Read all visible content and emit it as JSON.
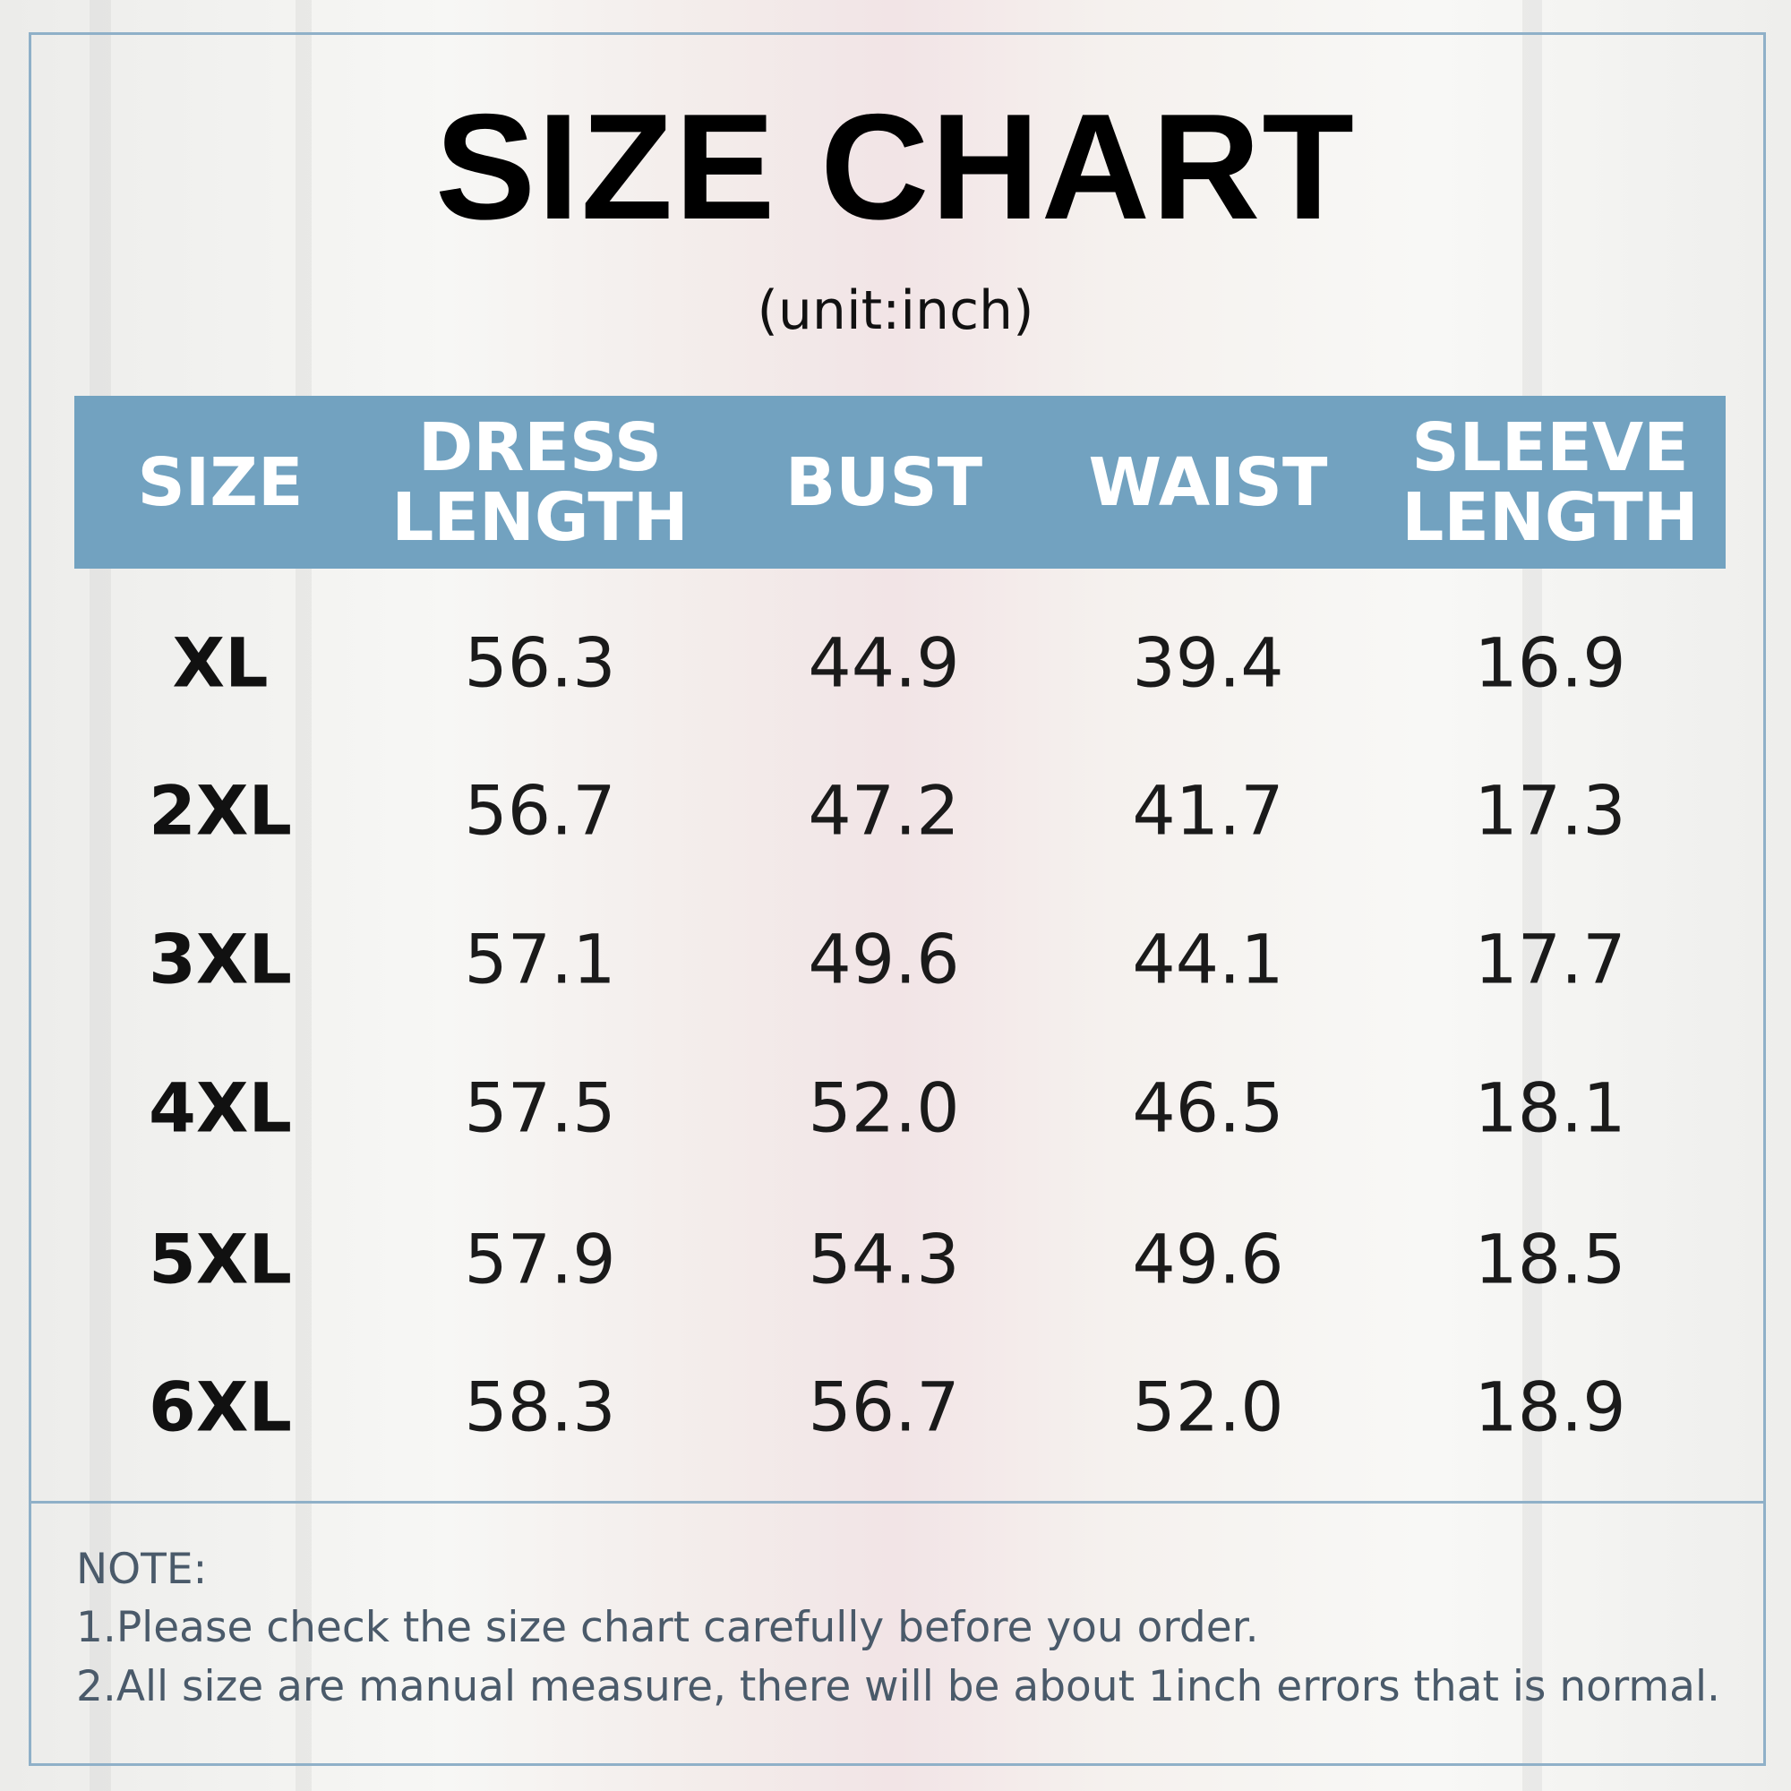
{
  "header": {
    "title": "SIZE CHART",
    "subtitle": "(unit:inch)"
  },
  "table": {
    "headers": [
      "SIZE",
      "DRESS LENGTH",
      "BUST",
      "WAIST",
      "SLEEVE LENGTH"
    ],
    "rows": [
      [
        "XL",
        "56.3",
        "44.9",
        "39.4",
        "16.9"
      ],
      [
        "2XL",
        "56.7",
        "47.2",
        "41.7",
        "17.3"
      ],
      [
        "3XL",
        "57.1",
        "49.6",
        "44.1",
        "17.7"
      ],
      [
        "4XL",
        "57.5",
        "52.0",
        "46.5",
        "18.1"
      ],
      [
        "5XL",
        "57.9",
        "54.3",
        "49.6",
        "18.5"
      ],
      [
        "6XL",
        "58.3",
        "56.7",
        "52.0",
        "18.9"
      ]
    ]
  },
  "note": {
    "title": "NOTE:",
    "lines": [
      "1.Please check the size chart carefully before you order.",
      "2.All size are manual measure, there will be about 1inch errors that is normal."
    ]
  }
}
